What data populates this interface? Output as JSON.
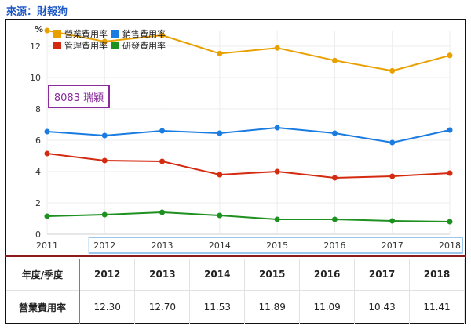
{
  "source_label": "來源：財報狗",
  "stock_label": "8083 瑞穎",
  "chart_data": {
    "type": "line",
    "y_unit": "%",
    "x": [
      2011,
      2012,
      2013,
      2014,
      2015,
      2016,
      2017,
      2018
    ],
    "ylim": [
      0,
      13
    ],
    "yticks": [
      0,
      2,
      4,
      6,
      8,
      10,
      12
    ],
    "grid": true,
    "legend_position": "top-left",
    "series": [
      {
        "name": "營業費用率",
        "color": "#e8a000",
        "values": [
          13.0,
          12.3,
          12.7,
          11.53,
          11.89,
          11.09,
          10.43,
          11.41
        ]
      },
      {
        "name": "銷售費用率",
        "color": "#1a7be0",
        "values": [
          6.55,
          6.3,
          6.6,
          6.45,
          6.8,
          6.45,
          5.85,
          6.65
        ]
      },
      {
        "name": "管理費用率",
        "color": "#d42a10",
        "values": [
          5.15,
          4.7,
          4.65,
          3.8,
          4.0,
          3.6,
          3.7,
          3.9
        ]
      },
      {
        "name": "研發費用率",
        "color": "#1e9020",
        "values": [
          1.15,
          1.25,
          1.4,
          1.2,
          0.95,
          0.95,
          0.85,
          0.8
        ]
      }
    ]
  },
  "table": {
    "header_label": "年度/季度",
    "years": [
      "2012",
      "2013",
      "2014",
      "2015",
      "2016",
      "2017",
      "2018"
    ],
    "row_label": "營業費用率",
    "row_values": [
      "12.30",
      "12.70",
      "11.53",
      "11.89",
      "11.09",
      "10.43",
      "11.41"
    ]
  }
}
